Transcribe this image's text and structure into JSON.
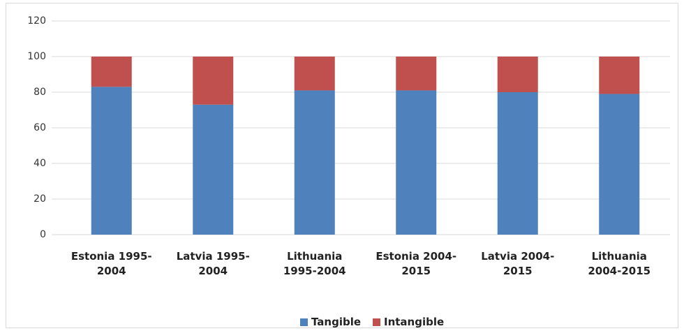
{
  "chart_data": {
    "type": "bar",
    "stacked": true,
    "categories": [
      "Estonia 1995-2004",
      "Latvia 1995-2004",
      "Lithuania 1995-2004",
      "Estonia 2004-2015",
      "Latvia 2004-2015",
      "Lithuania 2004-2015"
    ],
    "series": [
      {
        "name": "Tangible",
        "color": "#4f81bd",
        "values": [
          83,
          73,
          81,
          81,
          80,
          79
        ]
      },
      {
        "name": "Intangible",
        "color": "#c0504d",
        "values": [
          17,
          27,
          19,
          19,
          20,
          21
        ]
      }
    ],
    "ylim": [
      0,
      120
    ],
    "yticks": [
      0,
      20,
      40,
      60,
      80,
      100,
      120
    ],
    "grid": true,
    "legend": "bottom"
  }
}
